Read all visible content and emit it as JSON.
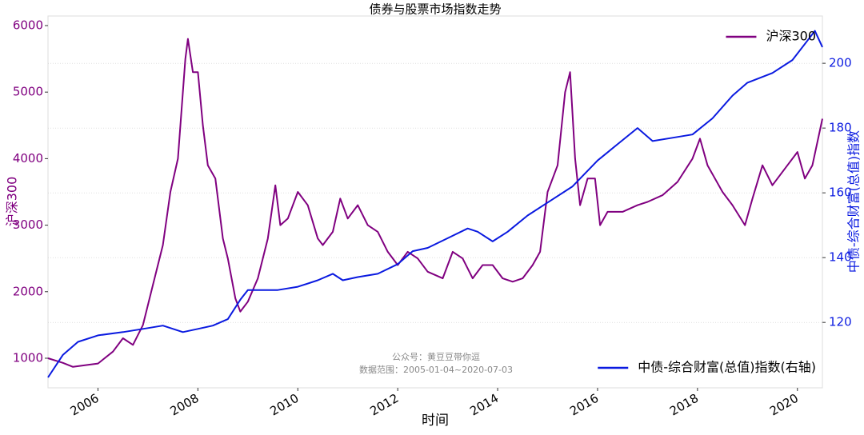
{
  "chart_data": {
    "type": "line",
    "title": "债券与股票市场指数走势",
    "x_label": "时间",
    "y_label": "沪深300",
    "y2_label": "中债-综合财富(总值)指数",
    "annotations": [
      "公众号：黄豆豆带你逗",
      "数据范围：2005-01-04~2020-07-03"
    ],
    "xlim": [
      2005.0,
      2020.5
    ],
    "xticks": [
      2006,
      2008,
      2010,
      2012,
      2014,
      2016,
      2018,
      2020
    ],
    "ylim": [
      555,
      6144
    ],
    "yticks": [
      1000,
      2000,
      3000,
      4000,
      5000,
      6000
    ],
    "y2lim": [
      99.8,
      214.6
    ],
    "y2ticks": [
      120,
      140,
      160,
      180,
      200
    ],
    "grid": true,
    "series": [
      {
        "name": "沪深300",
        "color": "#800080",
        "axis": "y",
        "x": [
          2005.0,
          2005.3,
          2005.5,
          2005.8,
          2006.0,
          2006.3,
          2006.5,
          2006.7,
          2006.9,
          2007.1,
          2007.3,
          2007.45,
          2007.6,
          2007.75,
          2007.8,
          2007.9,
          2008.0,
          2008.1,
          2008.2,
          2008.35,
          2008.5,
          2008.6,
          2008.75,
          2008.85,
          2009.0,
          2009.2,
          2009.4,
          2009.55,
          2009.65,
          2009.8,
          2010.0,
          2010.2,
          2010.4,
          2010.5,
          2010.7,
          2010.85,
          2011.0,
          2011.2,
          2011.4,
          2011.6,
          2011.8,
          2012.0,
          2012.2,
          2012.4,
          2012.6,
          2012.9,
          2013.1,
          2013.3,
          2013.5,
          2013.7,
          2013.9,
          2014.1,
          2014.3,
          2014.5,
          2014.7,
          2014.85,
          2015.0,
          2015.2,
          2015.35,
          2015.45,
          2015.55,
          2015.65,
          2015.8,
          2015.95,
          2016.05,
          2016.2,
          2016.5,
          2016.8,
          2017.0,
          2017.3,
          2017.6,
          2017.9,
          2018.05,
          2018.2,
          2018.5,
          2018.7,
          2018.95,
          2019.1,
          2019.3,
          2019.5,
          2019.8,
          2020.0,
          2020.15,
          2020.3,
          2020.5
        ],
        "values": [
          1000,
          930,
          870,
          900,
          920,
          1100,
          1300,
          1200,
          1500,
          2100,
          2700,
          3500,
          4000,
          5500,
          5800,
          5300,
          5300,
          4500,
          3900,
          3700,
          2800,
          2500,
          1900,
          1700,
          1850,
          2200,
          2800,
          3600,
          3000,
          3100,
          3500,
          3300,
          2800,
          2700,
          2900,
          3400,
          3100,
          3300,
          3000,
          2900,
          2600,
          2400,
          2600,
          2500,
          2300,
          2200,
          2600,
          2500,
          2200,
          2400,
          2400,
          2200,
          2150,
          2200,
          2400,
          2600,
          3500,
          3900,
          5000,
          5300,
          4000,
          3300,
          3700,
          3700,
          3000,
          3200,
          3200,
          3300,
          3350,
          3450,
          3650,
          4000,
          4300,
          3900,
          3500,
          3300,
          3000,
          3400,
          3900,
          3600,
          3900,
          4100,
          3700,
          3900,
          4600
        ]
      },
      {
        "name": "中债-综合财富(总值)指数(右轴)",
        "color": "#0a1ae0",
        "axis": "y2",
        "x": [
          2005.0,
          2005.3,
          2005.6,
          2006.0,
          2006.5,
          2006.9,
          2007.3,
          2007.7,
          2008.0,
          2008.3,
          2008.6,
          2008.85,
          2009.0,
          2009.3,
          2009.6,
          2010.0,
          2010.4,
          2010.7,
          2010.9,
          2011.2,
          2011.6,
          2012.0,
          2012.3,
          2012.6,
          2013.0,
          2013.4,
          2013.6,
          2013.9,
          2014.2,
          2014.6,
          2015.0,
          2015.5,
          2016.0,
          2016.4,
          2016.8,
          2017.1,
          2017.5,
          2017.9,
          2018.3,
          2018.7,
          2019.0,
          2019.5,
          2019.9,
          2020.2,
          2020.35,
          2020.5
        ],
        "values": [
          103,
          110,
          114,
          116,
          117,
          118,
          119,
          117,
          118,
          119,
          121,
          127,
          130,
          130,
          130,
          131,
          133,
          135,
          133,
          134,
          135,
          138,
          142,
          143,
          146,
          149,
          148,
          145,
          148,
          153,
          157,
          162,
          170,
          175,
          180,
          176,
          177,
          178,
          183,
          190,
          194,
          197,
          201,
          207,
          210,
          205
        ]
      }
    ]
  }
}
